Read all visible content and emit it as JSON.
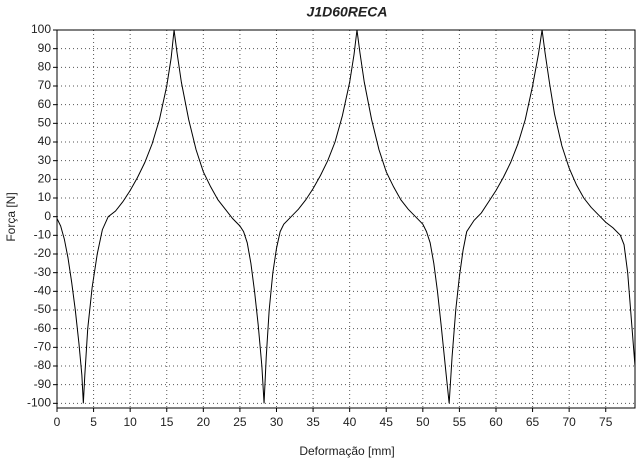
{
  "chart_data": {
    "type": "line",
    "title": "J1D60RECA",
    "x_label": "Deformação [mm]",
    "y_label": "Força [N]",
    "x": [
      0,
      0.5,
      1,
      1.5,
      2,
      2.5,
      3,
      3.4,
      3.6,
      3.8,
      4.2,
      4.8,
      5.5,
      6.2,
      7,
      8,
      9,
      10,
      11,
      12,
      13,
      14,
      15,
      15.6,
      16,
      16.4,
      17,
      18,
      19,
      20,
      21,
      22,
      23,
      24,
      25,
      25.5,
      26,
      26.5,
      27,
      27.5,
      28,
      28.3,
      28.6,
      29,
      29.5,
      30,
      30.5,
      31,
      32,
      33,
      34,
      35,
      36,
      37,
      38,
      39,
      40,
      40.6,
      41,
      41.4,
      42,
      43,
      44,
      45,
      46,
      47,
      48,
      49,
      50,
      50.5,
      51,
      51.5,
      52,
      52.5,
      53.2,
      53.6,
      54,
      54.5,
      55,
      55.5,
      56,
      57,
      58,
      59,
      60,
      61,
      62,
      63,
      64,
      65,
      65.8,
      66.3,
      66.7,
      67.3,
      68,
      69,
      70,
      71,
      72,
      73,
      74,
      75,
      76,
      77,
      77.5,
      78,
      78.5,
      79
    ],
    "series": [
      {
        "name": "J1D60RECA",
        "color": "#000000",
        "values": [
          -1,
          -5,
          -12,
          -22,
          -35,
          -50,
          -68,
          -85,
          -100,
          -85,
          -60,
          -38,
          -20,
          -7,
          0,
          3,
          8,
          14,
          21,
          29,
          39,
          52,
          70,
          85,
          100,
          88,
          72,
          52,
          36,
          24,
          16,
          9,
          4,
          -1,
          -5,
          -8,
          -14,
          -25,
          -40,
          -58,
          -80,
          -100,
          -75,
          -50,
          -30,
          -17,
          -8,
          -4,
          0,
          4,
          9,
          15,
          22,
          30,
          40,
          54,
          72,
          87,
          100,
          88,
          72,
          52,
          36,
          24,
          16,
          9,
          4,
          0,
          -4,
          -8,
          -14,
          -25,
          -40,
          -58,
          -85,
          -100,
          -75,
          -50,
          -32,
          -18,
          -8,
          -2,
          2,
          8,
          14,
          21,
          29,
          39,
          52,
          70,
          87,
          100,
          88,
          72,
          55,
          38,
          26,
          17,
          10,
          5,
          1,
          -3,
          -6,
          -10,
          -15,
          -30,
          -55,
          -80
        ]
      }
    ],
    "xlim": [
      0,
      79
    ],
    "ylim": [
      -102.5,
      100
    ],
    "xticks": [
      0,
      5,
      10,
      15,
      20,
      25,
      30,
      35,
      40,
      45,
      50,
      55,
      60,
      65,
      70,
      75
    ],
    "yticks": [
      -100,
      -90,
      -80,
      -70,
      -60,
      -50,
      -40,
      -30,
      -20,
      -10,
      0,
      10,
      20,
      30,
      40,
      50,
      60,
      70,
      80,
      90,
      100
    ],
    "grid": true
  }
}
